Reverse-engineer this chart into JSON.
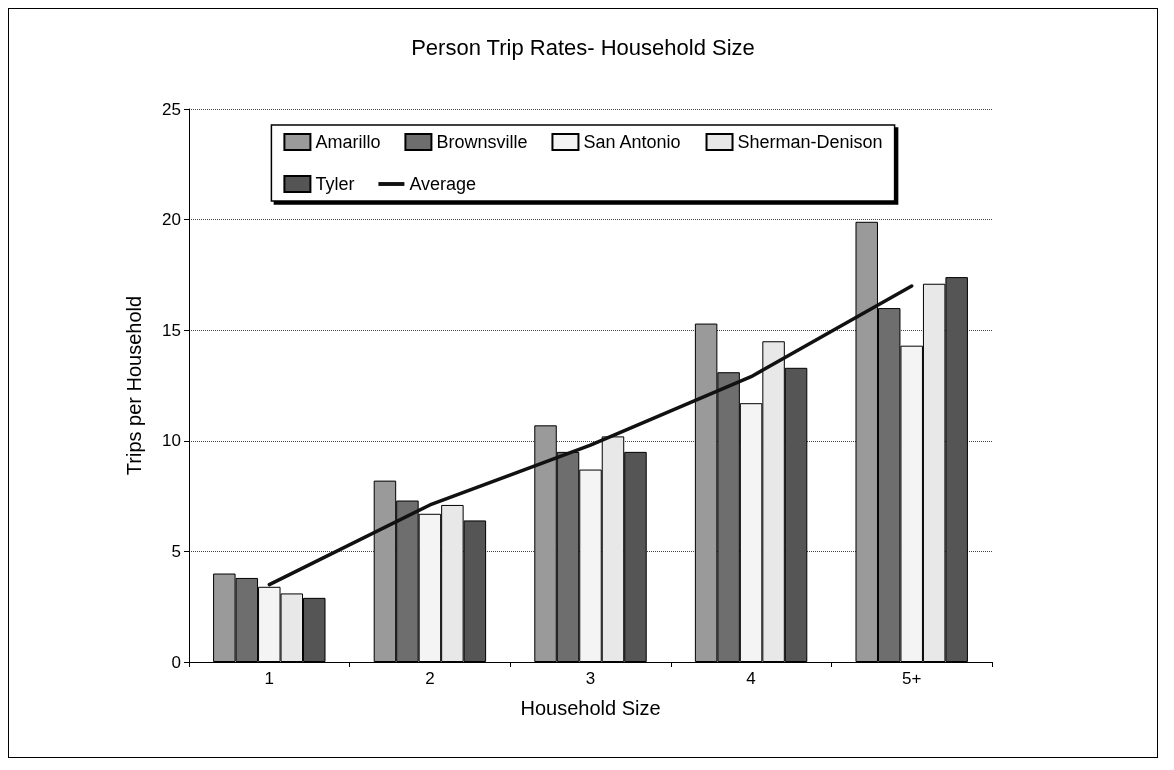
{
  "chart_data": {
    "type": "bar",
    "title": "Person Trip Rates- Household Size",
    "xlabel": "Household Size",
    "ylabel": "Trips per Household",
    "categories": [
      "1",
      "2",
      "3",
      "4",
      "5+"
    ],
    "series": [
      {
        "name": "Amarillo",
        "color": "#9a9a9a",
        "values": [
          4.0,
          8.2,
          10.7,
          15.3,
          19.9
        ]
      },
      {
        "name": "Brownsville",
        "color": "#6e6e6e",
        "values": [
          3.8,
          7.3,
          9.5,
          13.1,
          16.0
        ]
      },
      {
        "name": "San Antonio",
        "color": "#f4f4f4",
        "values": [
          3.4,
          6.7,
          8.7,
          11.7,
          14.3
        ]
      },
      {
        "name": "Sherman-Denison",
        "color": "#e8e8e8",
        "values": [
          3.1,
          7.1,
          10.2,
          14.5,
          17.1
        ]
      },
      {
        "name": "Tyler",
        "color": "#555555",
        "values": [
          2.9,
          6.4,
          9.5,
          13.3,
          17.4
        ]
      },
      {
        "name": "Average",
        "type": "line",
        "color": "#111111",
        "values": [
          3.5,
          7.1,
          9.8,
          12.9,
          17.0
        ]
      }
    ],
    "ylim": [
      0,
      25
    ],
    "yticks": [
      0,
      5,
      10,
      15,
      20,
      25
    ],
    "grid": "y",
    "legend": "top",
    "marker": "none",
    "line_style": "solid"
  }
}
